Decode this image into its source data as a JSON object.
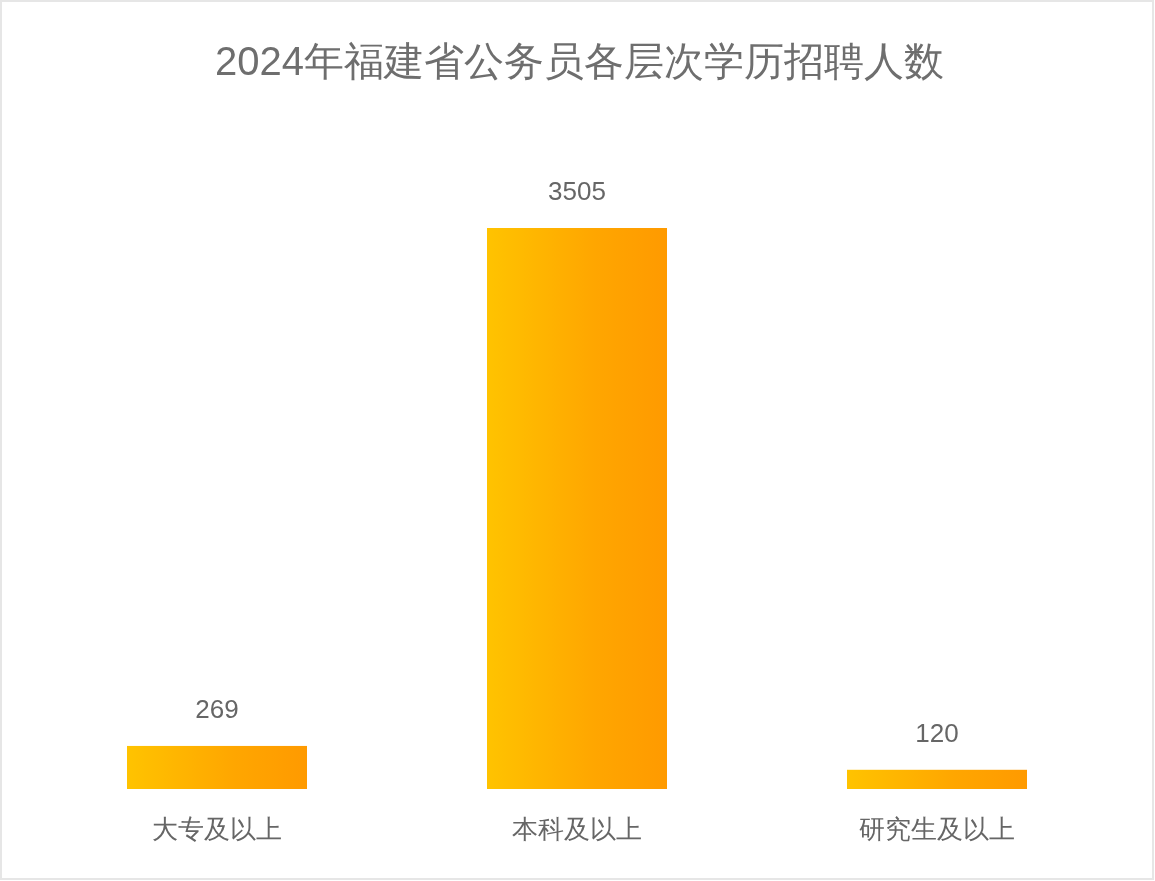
{
  "chart_data": {
    "type": "bar",
    "title": "2024年福建省公务员各层次学历招聘人数",
    "categories": [
      "大专及以上",
      "本科及以上",
      "研究生及以上"
    ],
    "values": [
      269,
      3505,
      120
    ],
    "color": "#ffa600",
    "data_labels": true
  }
}
